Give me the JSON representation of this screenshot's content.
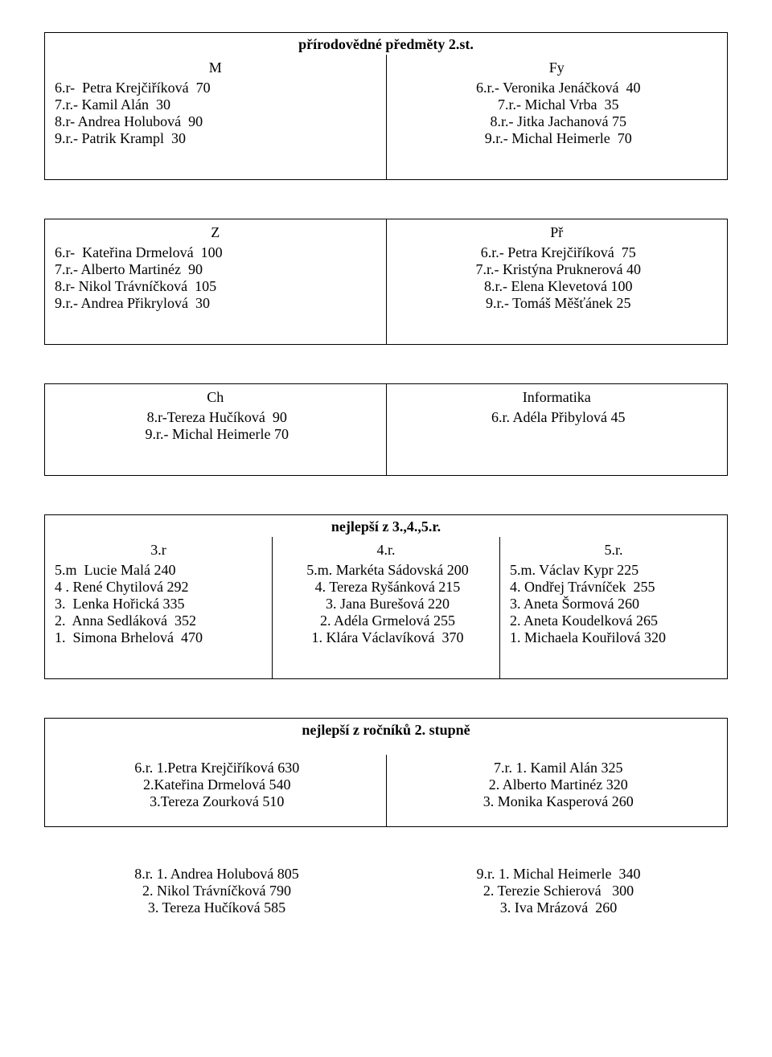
{
  "table1": {
    "title": "přírodovědné předměty 2.st.",
    "left": {
      "header": "M",
      "lines": [
        "6.r-  Petra Krejčiříková  70",
        "7.r.- Kamil Alán  30",
        "8.r- Andrea Holubová  90",
        "9.r.- Patrik Krampl  30"
      ]
    },
    "right": {
      "header": "Fy",
      "lines": [
        "6.r.- Veronika Jenáčková  40",
        "7.r.- Michal Vrba  35",
        "8.r.- Jitka Jachanová 75",
        "9.r.- Michal Heimerle  70"
      ]
    }
  },
  "table2": {
    "left": {
      "header": "Z",
      "lines": [
        "6.r-  Kateřina Drmelová  100",
        "7.r.- Alberto Martinéz  90",
        "8.r- Nikol Trávníčková  105",
        "9.r.- Andrea Přikrylová  30"
      ]
    },
    "right": {
      "header": "Př",
      "lines": [
        "6.r.- Petra Krejčiříková  75",
        "7.r.- Kristýna Pruknerová 40",
        "8.r.- Elena Klevetová 100",
        "9.r.- Tomáš Měšťánek 25"
      ]
    }
  },
  "table3": {
    "left": {
      "header": "Ch",
      "lines": [
        "8.r-Tereza Hučíková  90",
        "9.r.- Michal Heimerle 70"
      ]
    },
    "right": {
      "header": "Informatika",
      "lines": [
        "6.r. Adéla Přibylová 45"
      ]
    }
  },
  "table4": {
    "title": "nejlepší z  3.,4.,5.r.",
    "col1": {
      "header": "3.r",
      "lines": [
        "5.m  Lucie Malá 240",
        "4 . René Chytilová 292",
        "3.  Lenka Hořická 335",
        "2.  Anna Sedláková  352",
        "1.  Simona Brhelová  470"
      ]
    },
    "col2": {
      "header": "4.r.",
      "lines": [
        "5.m. Markéta Sádovská 200",
        "4. Tereza Ryšánková 215",
        "3. Jana Burešová 220",
        "2. Adéla Grmelová 255",
        "1. Klára Václavíková  370"
      ]
    },
    "col3": {
      "header": "5.r.",
      "lines": [
        "5.m. Václav Kypr 225",
        "4. Ondřej Trávníček  255",
        "3. Aneta Šormová 260",
        "2. Aneta Koudelková 265",
        "1. Michaela Kouřilová 320"
      ]
    }
  },
  "table5": {
    "title": "nejlepší z ročníků 2. stupně",
    "left": {
      "lines": [
        "6.r. 1.Petra Krejčiříková 630",
        "2.Kateřina Drmelová 540",
        "3.Tereza Zourková 510"
      ]
    },
    "right": {
      "lines": [
        "7.r. 1. Kamil Alán 325",
        "2. Alberto Martinéz 320",
        "3. Monika Kasperová 260"
      ]
    }
  },
  "table6": {
    "left": {
      "lines": [
        "8.r. 1. Andrea Holubová 805",
        "2. Nikol Trávníčková 790",
        "3. Tereza Hučíková 585"
      ]
    },
    "right": {
      "lines": [
        "9.r. 1. Michal Heimerle  340",
        "2. Terezie Schierová   300",
        "3. Iva Mrázová  260"
      ]
    }
  }
}
